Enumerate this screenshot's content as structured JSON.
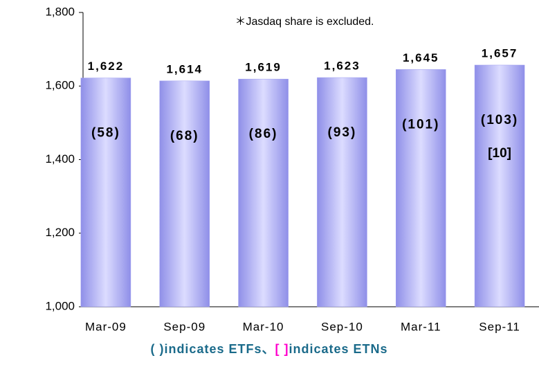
{
  "chart_data": {
    "type": "bar",
    "annotation": "＊Jasdaq share is excluded.",
    "categories": [
      "Mar-09",
      "Sep-09",
      "Mar-10",
      "Sep-10",
      "Mar-11",
      "Sep-11"
    ],
    "values": [
      1622,
      1614,
      1619,
      1623,
      1645,
      1657
    ],
    "value_labels": [
      "1,622",
      "1,614",
      "1,619",
      "1,623",
      "1,645",
      "1,657"
    ],
    "etf_labels": [
      "(58)",
      "(68)",
      "(86)",
      "(93)",
      "(101)",
      "(103)"
    ],
    "etn_labels": [
      null,
      null,
      null,
      null,
      null,
      "[10]"
    ],
    "footer": [
      "( )indicates ETFs、",
      "[ ]",
      "indicates ETNs"
    ],
    "color": "#9c9cf0",
    "value_label_color": "#ff0000",
    "etf_label_color": "#1a3a6a",
    "etn_label_color": "#ff00cc",
    "ylim": [
      1000,
      1800
    ],
    "yticks": [
      {
        "value": 1000,
        "label": "1,000"
      },
      {
        "value": 1200,
        "label": "1,200"
      },
      {
        "value": 1400,
        "label": "1,400"
      },
      {
        "value": 1600,
        "label": "1,600"
      },
      {
        "value": 1800,
        "label": "1,800"
      }
    ],
    "grid": false
  }
}
